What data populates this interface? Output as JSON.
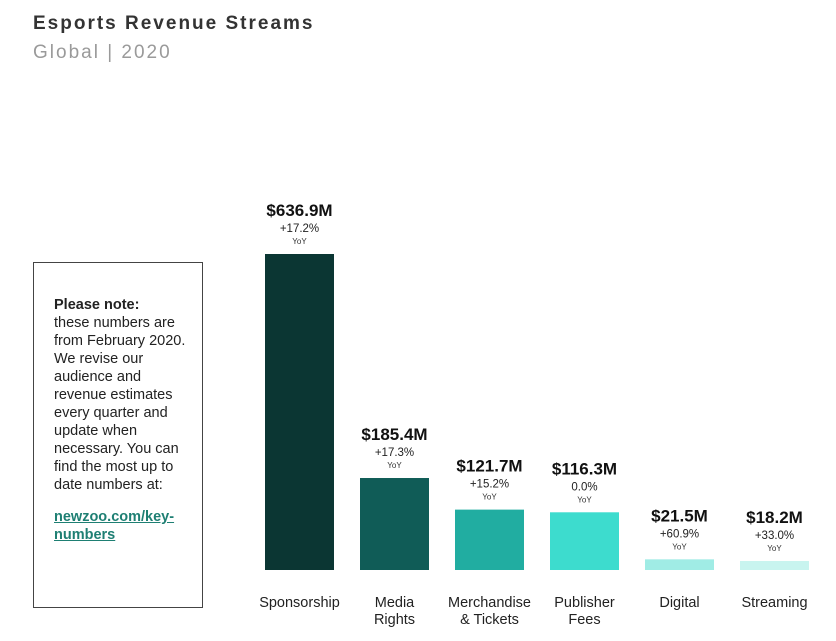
{
  "header": {
    "title": "Esports Revenue Streams",
    "subtitle": "Global | 2020"
  },
  "note": {
    "heading": "Please note:",
    "body": "these numbers are from February 2020. We revise our audience and revenue estimates every quarter and update when necessary. You can find the most up to date numbers at:",
    "link": "newzoo.com/key-numbers"
  },
  "chart_data": {
    "type": "bar",
    "categories": [
      "Sponsorship",
      "Media Rights",
      "Merchandise & Tickets",
      "Publisher Fees",
      "Digital",
      "Streaming"
    ],
    "category_lines": [
      [
        "Sponsorship"
      ],
      [
        "Media",
        "Rights"
      ],
      [
        "Merchandise",
        "& Tickets"
      ],
      [
        "Publisher",
        "Fees"
      ],
      [
        "Digital"
      ],
      [
        "Streaming"
      ]
    ],
    "values": [
      636.9,
      185.4,
      121.7,
      116.3,
      21.5,
      18.2
    ],
    "value_labels": [
      "$636.9M",
      "$185.4M",
      "$121.7M",
      "$116.3M",
      "$21.5M",
      "$18.2M"
    ],
    "yoy_labels": [
      "+17.2%",
      "+17.3%",
      "+15.2%",
      "0.0%",
      "+60.9%",
      "+33.0%"
    ],
    "yoy_caption": "YoY",
    "colors": [
      "#0b3633",
      "#105c57",
      "#21ada1",
      "#3ddcce",
      "#a0ece5",
      "#c8f4ef"
    ],
    "unit": "$M",
    "ylim": [
      0,
      636.9
    ],
    "grid": false,
    "legend": "none"
  }
}
